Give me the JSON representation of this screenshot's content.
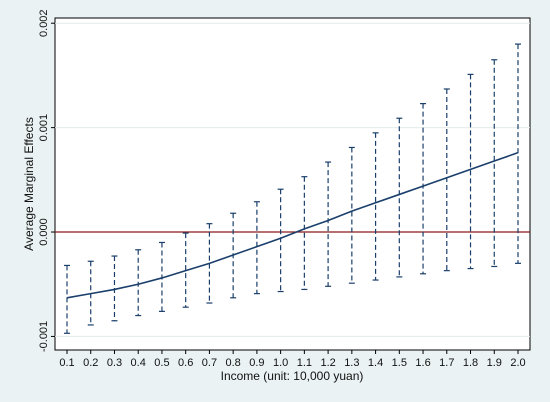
{
  "chart_data": {
    "type": "line",
    "title": "",
    "xlabel": "Income (unit: 10,000 yuan)",
    "ylabel": "Average Marginal Effects",
    "x": [
      0.1,
      0.2,
      0.3,
      0.4,
      0.5,
      0.6,
      0.7,
      0.8,
      0.9,
      1.0,
      1.1,
      1.2,
      1.3,
      1.4,
      1.5,
      1.6,
      1.7,
      1.8,
      1.9,
      2.0
    ],
    "x_tick_labels": [
      "0.1",
      "0.2",
      "0.3",
      "0.4",
      "0.5",
      "0.6",
      "0.7",
      "0.8",
      "0.9",
      "1.0",
      "1.1",
      "1.2",
      "1.3",
      "1.4",
      "1.5",
      "1.6",
      "1.7",
      "1.8",
      "1.9",
      "2.0"
    ],
    "xlim": [
      0.1,
      2.0
    ],
    "ylim": [
      -0.00113,
      0.00205
    ],
    "y_ticks": [
      -0.001,
      0,
      0.001,
      0.002
    ],
    "y_tick_labels": [
      "-0.001",
      "0.000",
      "0.001",
      "0.002"
    ],
    "grid": "horizontal",
    "reference_line": {
      "y": 0,
      "color": "#8b1a1a"
    },
    "series": [
      {
        "values": [
          -0.00063,
          -0.00059,
          -0.00055,
          -0.0005,
          -0.00044,
          -0.00037,
          -0.0003,
          -0.00022,
          -0.00014,
          -6e-05,
          3e-05,
          0.00011,
          0.0002,
          0.00028,
          0.00036,
          0.00044,
          0.00052,
          0.0006,
          0.00068,
          0.00076
        ],
        "lower": [
          -0.00097,
          -0.00089,
          -0.00085,
          -0.0008,
          -0.00076,
          -0.00072,
          -0.00068,
          -0.00063,
          -0.00059,
          -0.00057,
          -0.00055,
          -0.00052,
          -0.00049,
          -0.00046,
          -0.00043,
          -0.0004,
          -0.00037,
          -0.00035,
          -0.00033,
          -0.0003
        ],
        "upper": [
          -0.00032,
          -0.00028,
          -0.00023,
          -0.00017,
          -0.0001,
          -1e-05,
          8e-05,
          0.00018,
          0.00029,
          0.00041,
          0.00053,
          0.00067,
          0.00081,
          0.00095,
          0.00109,
          0.00123,
          0.00137,
          0.00151,
          0.00165,
          0.0018
        ],
        "line_color": "#1a3f6b",
        "ci_color": "#1a3f6b"
      }
    ]
  }
}
